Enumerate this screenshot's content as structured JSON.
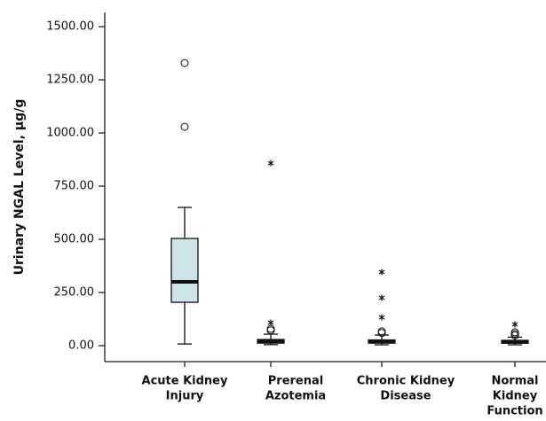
{
  "chart_data": {
    "type": "box",
    "ylabel": "Urinary NGAL Level, μg/g",
    "categories": [
      [
        "Acute Kidney",
        "Injury"
      ],
      [
        "Prerenal",
        "Azotemia"
      ],
      [
        "Chronic Kidney",
        "Disease"
      ],
      [
        "Normal",
        "Kidney",
        "Function"
      ]
    ],
    "boxes": [
      {
        "whislo": 8,
        "q1": 204,
        "med": 300,
        "q3": 504,
        "whishi": 650,
        "outliers": [
          1329,
          1029
        ],
        "extremes": []
      },
      {
        "whislo": 5,
        "q1": 12,
        "med": 21,
        "q3": 29,
        "whishi": 54,
        "outliers": [
          79,
          72
        ],
        "extremes": [
          108,
          858
        ]
      },
      {
        "whislo": 4,
        "q1": 12,
        "med": 18,
        "q3": 27,
        "whishi": 50,
        "outliers": [
          67,
          60
        ],
        "extremes": [
          133,
          225,
          346
        ]
      },
      {
        "whislo": 4,
        "q1": 12,
        "med": 17,
        "q3": 25,
        "whishi": 40,
        "outliers": [
          63,
          55,
          48
        ],
        "extremes": [
          100
        ]
      }
    ],
    "color": "#cfe3ea",
    "ylim": [
      -75,
      1567
    ],
    "yticks": [
      {
        "value": 0,
        "label": "0.00"
      },
      {
        "value": 250,
        "label": "250.00"
      },
      {
        "value": 500,
        "label": "500.00"
      },
      {
        "value": 750,
        "label": "750.00"
      },
      {
        "value": 1000,
        "label": "1000.00"
      },
      {
        "value": 1250,
        "label": "1250.00"
      },
      {
        "value": 1500,
        "label": "1500.00"
      }
    ]
  }
}
